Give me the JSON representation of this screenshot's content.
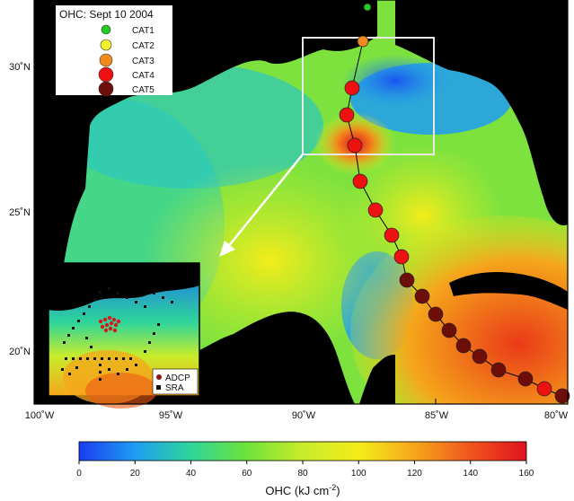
{
  "legend": {
    "title": "OHC: Sept 10 2004",
    "items": [
      {
        "label": "CAT1",
        "color": "#22cc22"
      },
      {
        "label": "CAT2",
        "color": "#f2f230"
      },
      {
        "label": "CAT3",
        "color": "#f08a1c"
      },
      {
        "label": "CAT4",
        "color": "#ee1111"
      },
      {
        "label": "CAT5",
        "color": "#6e0e08"
      }
    ]
  },
  "axes": {
    "lat_labels": [
      "30˚N",
      "25˚N",
      "20˚N"
    ],
    "lon_labels": [
      "100˚W",
      "95˚W",
      "90˚W",
      "85˚W",
      "80˚W"
    ]
  },
  "inset_legend": {
    "items": [
      {
        "label": "ADCP",
        "color": "#8b1a1a",
        "shape": "circle"
      },
      {
        "label": "SRA",
        "color": "#111111",
        "shape": "square"
      }
    ]
  },
  "colorbar": {
    "ticks": [
      "0",
      "20",
      "40",
      "60",
      "80",
      "100",
      "120",
      "140",
      "160"
    ],
    "title": "OHC (kJ cm",
    "title_sup": "-2",
    "title_end": ")",
    "colors": [
      "#1b3cf0",
      "#1e9cf2",
      "#2ed69a",
      "#6ee23a",
      "#c8ec2a",
      "#f4ec1a",
      "#f5a61b",
      "#f0551e",
      "#e0121e"
    ]
  },
  "track": {
    "storm_points": [
      {
        "cat": 1,
        "color": "#22cc22"
      },
      {
        "cat": 3,
        "color": "#f08a1c"
      },
      {
        "cat": 4,
        "color": "#ee1111"
      },
      {
        "cat": 4,
        "color": "#ee1111"
      },
      {
        "cat": 4,
        "color": "#ee1111"
      },
      {
        "cat": 4,
        "color": "#ee1111"
      },
      {
        "cat": 4,
        "color": "#ee1111"
      },
      {
        "cat": 4,
        "color": "#ee1111"
      },
      {
        "cat": 4,
        "color": "#ee1111"
      },
      {
        "cat": 5,
        "color": "#6e0e08"
      },
      {
        "cat": 5,
        "color": "#6e0e08"
      },
      {
        "cat": 5,
        "color": "#6e0e08"
      },
      {
        "cat": 5,
        "color": "#6e0e08"
      },
      {
        "cat": 5,
        "color": "#6e0e08"
      },
      {
        "cat": 5,
        "color": "#6e0e08"
      },
      {
        "cat": 5,
        "color": "#6e0e08"
      },
      {
        "cat": 5,
        "color": "#6e0e08"
      },
      {
        "cat": 4,
        "color": "#ee1111"
      },
      {
        "cat": 5,
        "color": "#6e0e08"
      },
      {
        "cat": 5,
        "color": "#6e0e08"
      },
      {
        "cat": 5,
        "color": "#6e0e08"
      }
    ]
  }
}
